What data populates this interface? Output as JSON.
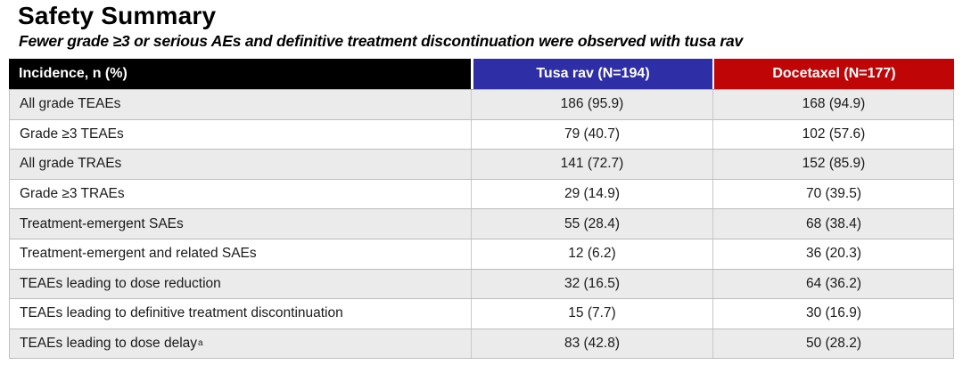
{
  "page": {
    "title": "Safety Summary",
    "subtitle": "Fewer grade ≥3 or serious AEs and definitive treatment discontinuation were observed with tusa rav"
  },
  "colors": {
    "header_label_bg": "#000000",
    "tusa_rav_accent": "#2e2ea6",
    "docetaxel_accent": "#c00506",
    "row_alt_bg": "#ebebeb"
  },
  "table": {
    "header": {
      "label": "Incidence, n (%)",
      "tusa": "Tusa rav (N=194)",
      "docetaxel": "Docetaxel (N=177)"
    },
    "rows": [
      {
        "label": "All grade TEAEs",
        "sup": "",
        "tusa": "186 (95.9)",
        "docetaxel": "168 (94.9)"
      },
      {
        "label": "Grade ≥3 TEAEs",
        "sup": "",
        "tusa": "79 (40.7)",
        "docetaxel": "102 (57.6)"
      },
      {
        "label": "All grade TRAEs",
        "sup": "",
        "tusa": "141 (72.7)",
        "docetaxel": "152 (85.9)"
      },
      {
        "label": "Grade ≥3 TRAEs",
        "sup": "",
        "tusa": "29 (14.9)",
        "docetaxel": "70 (39.5)"
      },
      {
        "label": "Treatment-emergent SAEs",
        "sup": "",
        "tusa": "55 (28.4)",
        "docetaxel": "68 (38.4)"
      },
      {
        "label": "Treatment-emergent and related SAEs",
        "sup": "",
        "tusa": "12 (6.2)",
        "docetaxel": "36 (20.3)"
      },
      {
        "label": "TEAEs leading to dose reduction",
        "sup": "",
        "tusa": "32 (16.5)",
        "docetaxel": "64 (36.2)"
      },
      {
        "label": "TEAEs leading to definitive treatment discontinuation",
        "sup": "",
        "tusa": "15 (7.7)",
        "docetaxel": "30 (16.9)"
      },
      {
        "label": "TEAEs leading to dose delay",
        "sup": "a",
        "tusa": "83 (42.8)",
        "docetaxel": "50 (28.2)"
      }
    ]
  }
}
